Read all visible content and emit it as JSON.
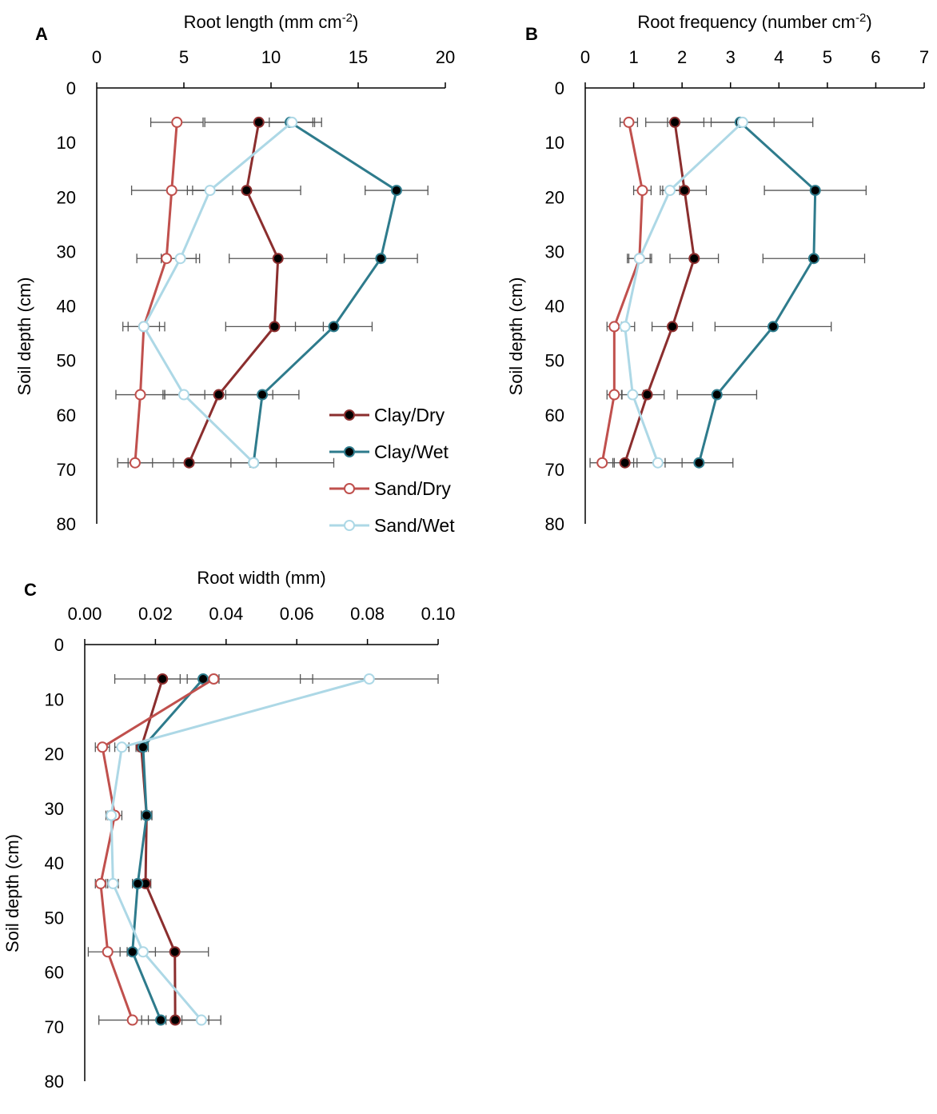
{
  "colors": {
    "Clay/Dry": "#8b2e2e",
    "Clay/Wet": "#2e7b8c",
    "Sand/Dry": "#c0504d",
    "Sand/Wet": "#add8e6",
    "errorbar": "#555555",
    "axis": "#000000"
  },
  "chart_data": [
    {
      "panel": "A",
      "type": "line",
      "orientation": "x-value vs y-depth (y inverted)",
      "title": "",
      "xlabel": "Root length (mm cm",
      "xlabel_sup": "-2",
      "xlabel_suffix": ")",
      "ylabel": "Soil depth (cm)",
      "xlim": [
        0,
        20
      ],
      "ylim": [
        0,
        80
      ],
      "xticks": [
        0,
        5,
        10,
        15,
        20
      ],
      "yticks": [
        0,
        10,
        20,
        30,
        40,
        50,
        60,
        70,
        80
      ],
      "legend": "right-lower",
      "depths": [
        6.3,
        18.8,
        31.3,
        43.8,
        56.3,
        68.8
      ],
      "series": [
        {
          "name": "Clay/Dry",
          "values": [
            9.3,
            8.6,
            10.4,
            10.2,
            7.0,
            5.3
          ],
          "errors": [
            3.1,
            3.1,
            2.8,
            2.8,
            3.1,
            3.5
          ],
          "marker_fill": "#000000"
        },
        {
          "name": "Clay/Wet",
          "values": [
            11.1,
            17.2,
            16.3,
            13.6,
            9.5,
            9.0
          ],
          "errors": [
            1.8,
            1.8,
            2.1,
            2.2,
            2.1,
            4.6
          ],
          "marker_fill": "#000000"
        },
        {
          "name": "Sand/Dry",
          "values": [
            4.6,
            4.3,
            4.0,
            2.7,
            2.5,
            2.2
          ],
          "errors": [
            1.5,
            2.3,
            1.7,
            1.2,
            1.4,
            1.0
          ],
          "marker_fill": "#ffffff"
        },
        {
          "name": "Sand/Wet",
          "values": [
            11.2,
            6.5,
            4.8,
            2.7,
            5.0,
            9.0
          ],
          "errors": [
            1.3,
            1.3,
            1.1,
            0.9,
            1.2,
            1.3
          ],
          "marker_fill": "#ffffff"
        }
      ]
    },
    {
      "panel": "B",
      "type": "line",
      "orientation": "x-value vs y-depth (y inverted)",
      "title": "",
      "xlabel": "Root frequency (number cm",
      "xlabel_sup": "-2",
      "xlabel_suffix": ")",
      "ylabel": "Soil depth (cm)",
      "xlim": [
        0,
        7
      ],
      "ylim": [
        0,
        80
      ],
      "xticks": [
        0,
        1,
        2,
        3,
        4,
        5,
        6,
        7
      ],
      "yticks": [
        0,
        10,
        20,
        30,
        40,
        50,
        60,
        70,
        80
      ],
      "depths": [
        6.3,
        18.8,
        31.3,
        43.8,
        56.3,
        68.8
      ],
      "series": [
        {
          "name": "Clay/Dry",
          "values": [
            1.85,
            2.05,
            2.25,
            1.8,
            1.28,
            0.82
          ],
          "errors": [
            0.6,
            0.45,
            0.5,
            0.42,
            0.35,
            0.25
          ],
          "marker_fill": "#000000"
        },
        {
          "name": "Clay/Wet",
          "values": [
            3.2,
            4.75,
            4.72,
            3.88,
            2.72,
            2.35
          ],
          "errors": [
            1.5,
            1.05,
            1.05,
            1.2,
            0.82,
            0.7
          ],
          "marker_fill": "#000000"
        },
        {
          "name": "Sand/Dry",
          "values": [
            0.9,
            1.18,
            1.12,
            0.6,
            0.6,
            0.35
          ],
          "errors": [
            0.18,
            0.18,
            0.22,
            0.15,
            0.15,
            0.25
          ],
          "marker_fill": "#ffffff"
        },
        {
          "name": "Sand/Wet",
          "values": [
            3.25,
            1.75,
            1.12,
            0.82,
            0.98,
            1.5
          ],
          "errors": [
            0.65,
            0.2,
            0.25,
            0.2,
            0.22,
            0.5
          ],
          "marker_fill": "#ffffff"
        }
      ]
    },
    {
      "panel": "C",
      "type": "line",
      "orientation": "x-value vs y-depth (y inverted)",
      "title": "",
      "xlabel": "Root width (mm)",
      "xlabel_sup": "",
      "xlabel_suffix": "",
      "ylabel": "Soil depth (cm)",
      "xlim": [
        0,
        0.1
      ],
      "ylim": [
        0,
        80
      ],
      "xticks": [
        "0.00",
        "0.02",
        "0.04",
        "0.06",
        "0.08",
        "0.10"
      ],
      "yticks": [
        0,
        10,
        20,
        30,
        40,
        50,
        60,
        70,
        80
      ],
      "depths": [
        6.3,
        18.8,
        31.3,
        43.8,
        56.3,
        68.8
      ],
      "series": [
        {
          "name": "Clay/Dry",
          "values": [
            0.022,
            0.016,
            0.0175,
            0.0172,
            0.0255,
            0.0256
          ],
          "errors": [
            0.005,
            0.0015,
            0.0015,
            0.0015,
            0.0095,
            0.0095
          ],
          "marker_fill": "#000000"
        },
        {
          "name": "Clay/Wet",
          "values": [
            0.0335,
            0.0165,
            0.0175,
            0.015,
            0.0135,
            0.0215
          ],
          "errors": [
            0.0045,
            0.0015,
            0.0015,
            0.0015,
            0.0035,
            0.0035
          ],
          "marker_fill": "#000000"
        },
        {
          "name": "Sand/Dry",
          "values": [
            0.0365,
            0.005,
            0.0085,
            0.0045,
            0.0065,
            0.0135
          ],
          "errors": [
            0.028,
            0.002,
            0.002,
            0.0015,
            0.0055,
            0.0095
          ],
          "marker_fill": "#ffffff"
        },
        {
          "name": "Sand/Wet",
          "values": [
            0.0805,
            0.0105,
            0.0075,
            0.008,
            0.0165,
            0.033
          ],
          "errors": [
            0.0195,
            0.002,
            0.0015,
            0.0015,
            0.0035,
            0.0055
          ],
          "marker_fill": "#ffffff"
        }
      ]
    }
  ]
}
